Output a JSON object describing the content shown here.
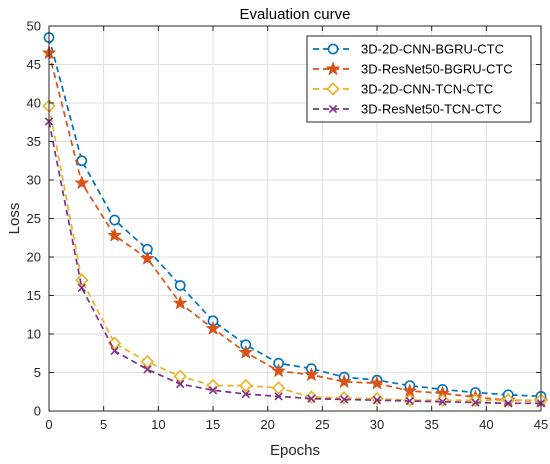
{
  "chart_data": {
    "type": "line",
    "title": "Evaluation curve",
    "xlabel": "Epochs",
    "ylabel": "Loss",
    "xlim": [
      0,
      45
    ],
    "ylim": [
      0,
      50
    ],
    "xticks": [
      0,
      5,
      10,
      15,
      20,
      25,
      30,
      35,
      40,
      45
    ],
    "yticks": [
      0,
      5,
      10,
      15,
      20,
      25,
      30,
      35,
      40,
      45,
      50
    ],
    "grid": true,
    "legend_position": "top-right",
    "x": [
      0,
      3,
      6,
      9,
      12,
      15,
      18,
      21,
      24,
      27,
      30,
      33,
      36,
      39,
      42,
      45
    ],
    "series": [
      {
        "name": "3D-2D-CNN-BGRU-CTC",
        "color": "#0072BD",
        "marker": "circle",
        "values": [
          48.5,
          32.5,
          24.8,
          21.0,
          16.3,
          11.7,
          8.6,
          6.2,
          5.5,
          4.4,
          4.0,
          3.3,
          2.8,
          2.4,
          2.1,
          1.9
        ]
      },
      {
        "name": "3D-ResNet50-BGRU-CTC",
        "color": "#D95319",
        "marker": "star",
        "values": [
          46.5,
          29.6,
          22.8,
          19.8,
          14.0,
          10.7,
          7.6,
          5.2,
          4.7,
          3.8,
          3.6,
          2.6,
          2.3,
          1.8,
          1.4,
          1.3
        ]
      },
      {
        "name": "3D-2D-CNN-TCN-CTC",
        "color": "#EDB120",
        "marker": "diamond",
        "values": [
          39.6,
          17.0,
          8.8,
          6.4,
          4.5,
          3.3,
          3.3,
          3.0,
          1.8,
          1.7,
          1.6,
          1.4,
          1.4,
          1.4,
          1.4,
          1.4
        ]
      },
      {
        "name": "3D-ResNet50-TCN-CTC",
        "color": "#7E2F8E",
        "marker": "x",
        "values": [
          37.6,
          16.0,
          7.8,
          5.4,
          3.5,
          2.7,
          2.2,
          1.9,
          1.6,
          1.5,
          1.4,
          1.3,
          1.2,
          1.1,
          1.0,
          1.0
        ]
      }
    ]
  }
}
